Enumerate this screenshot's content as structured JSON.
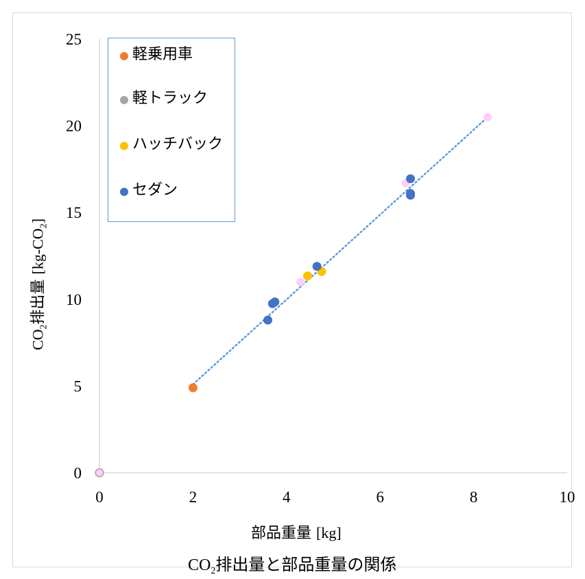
{
  "chart_data": {
    "type": "scatter",
    "title": "CO₂排出量と部品重量の関係",
    "title_parts": {
      "pre": "CO",
      "sub": "2",
      "post": "排出量と部品重量の関係"
    },
    "xlabel": "部品重量 [kg]",
    "xlabel_parts": {
      "main": "部品重量 ",
      "unit": "[kg]"
    },
    "ylabel": "CO₂排出量 [kg-CO₂]",
    "ylabel_parts": {
      "pre": "CO",
      "sub1": "2",
      "mid": "排出量 ",
      "unit_pre": "[kg-CO",
      "sub2": "2",
      "unit_post": "]"
    },
    "xlim": [
      0,
      10
    ],
    "ylim": [
      0,
      25
    ],
    "x_ticks": [
      "0",
      "2",
      "4",
      "6",
      "8",
      "10"
    ],
    "y_ticks": [
      "0",
      "5",
      "10",
      "15",
      "20",
      "25"
    ],
    "grid": false,
    "legend_position": "top-left",
    "series": [
      {
        "name": "軽乗用車",
        "color": "#ed7d31",
        "points": [
          [
            2.0,
            4.9
          ],
          [
            0.0,
            0.0
          ]
        ]
      },
      {
        "name": "軽トラック",
        "color": "#a5a5a5",
        "points": [
          [
            0.0,
            0.0
          ]
        ]
      },
      {
        "name": "ハッチバック",
        "color": "#ffc000",
        "points": [
          [
            4.45,
            11.35
          ],
          [
            4.75,
            11.6
          ]
        ]
      },
      {
        "name": "セダン",
        "color": "#4472c4",
        "points": [
          [
            3.6,
            8.8
          ],
          [
            3.7,
            9.75
          ],
          [
            3.75,
            9.85
          ],
          [
            4.65,
            11.9
          ],
          [
            6.65,
            16.95
          ],
          [
            6.65,
            16.1
          ],
          [
            6.65,
            16.0
          ]
        ]
      }
    ],
    "extra_points": {
      "color": "#ffccff",
      "points": [
        [
          0.0,
          0.0
        ],
        [
          4.3,
          11.0
        ],
        [
          6.55,
          16.7
        ],
        [
          8.3,
          20.5
        ]
      ]
    },
    "trendline": {
      "style": "dotted",
      "color": "#5b9bd5",
      "from": [
        2.0,
        5.1
      ],
      "to": [
        8.3,
        20.5
      ]
    }
  }
}
